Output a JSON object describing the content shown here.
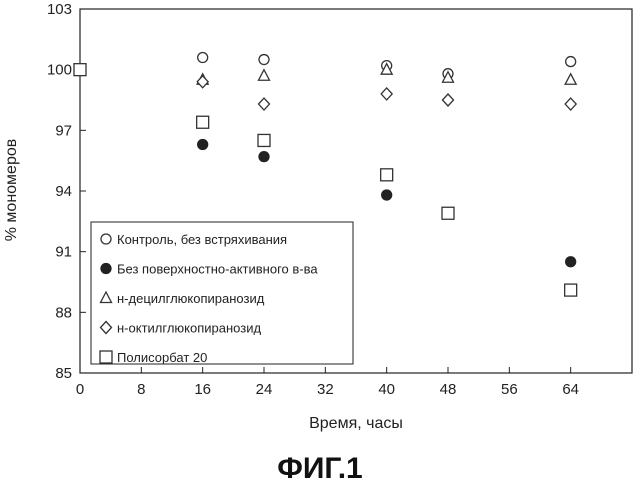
{
  "figure_label": "ФИГ.1",
  "chart_data": {
    "type": "scatter",
    "xlabel": "Время, часы",
    "ylabel": "% мономеров",
    "xlim": [
      0,
      72
    ],
    "ylim": [
      85,
      103
    ],
    "xticks": [
      "0",
      "8",
      "16",
      "24",
      "32",
      "40",
      "48",
      "56",
      "64"
    ],
    "yticks": [
      "85",
      "88",
      "91",
      "94",
      "97",
      "100",
      "103"
    ],
    "xtick_values": [
      0,
      8,
      16,
      24,
      32,
      40,
      48,
      56,
      64
    ],
    "ytick_values": [
      85,
      88,
      91,
      94,
      97,
      100,
      103
    ],
    "grid": false,
    "legend_position": "bottom-left",
    "series": [
      {
        "name": "Контроль, без встряхивания",
        "marker": "circle-open",
        "x": [
          16,
          24,
          40,
          48,
          64
        ],
        "y": [
          100.6,
          100.5,
          100.2,
          99.8,
          100.4
        ]
      },
      {
        "name": "Без поверхностно-активного в-ва",
        "marker": "circle-filled",
        "x": [
          16,
          24,
          40,
          64
        ],
        "y": [
          96.3,
          95.7,
          93.8,
          90.5
        ]
      },
      {
        "name": "н-децилглюкопиранозид",
        "marker": "triangle-open",
        "x": [
          16,
          24,
          40,
          48,
          64
        ],
        "y": [
          99.5,
          99.7,
          100.0,
          99.6,
          99.5
        ]
      },
      {
        "name": "н-октилглюкопиранозид",
        "marker": "diamond-open",
        "x": [
          16,
          24,
          40,
          48,
          64
        ],
        "y": [
          99.4,
          98.3,
          98.8,
          98.5,
          98.3
        ]
      },
      {
        "name": "Полисорбат 20",
        "marker": "square-open",
        "x": [
          0,
          16,
          24,
          40,
          48,
          64
        ],
        "y": [
          100.0,
          97.4,
          96.5,
          94.8,
          92.9,
          89.1
        ]
      }
    ]
  }
}
